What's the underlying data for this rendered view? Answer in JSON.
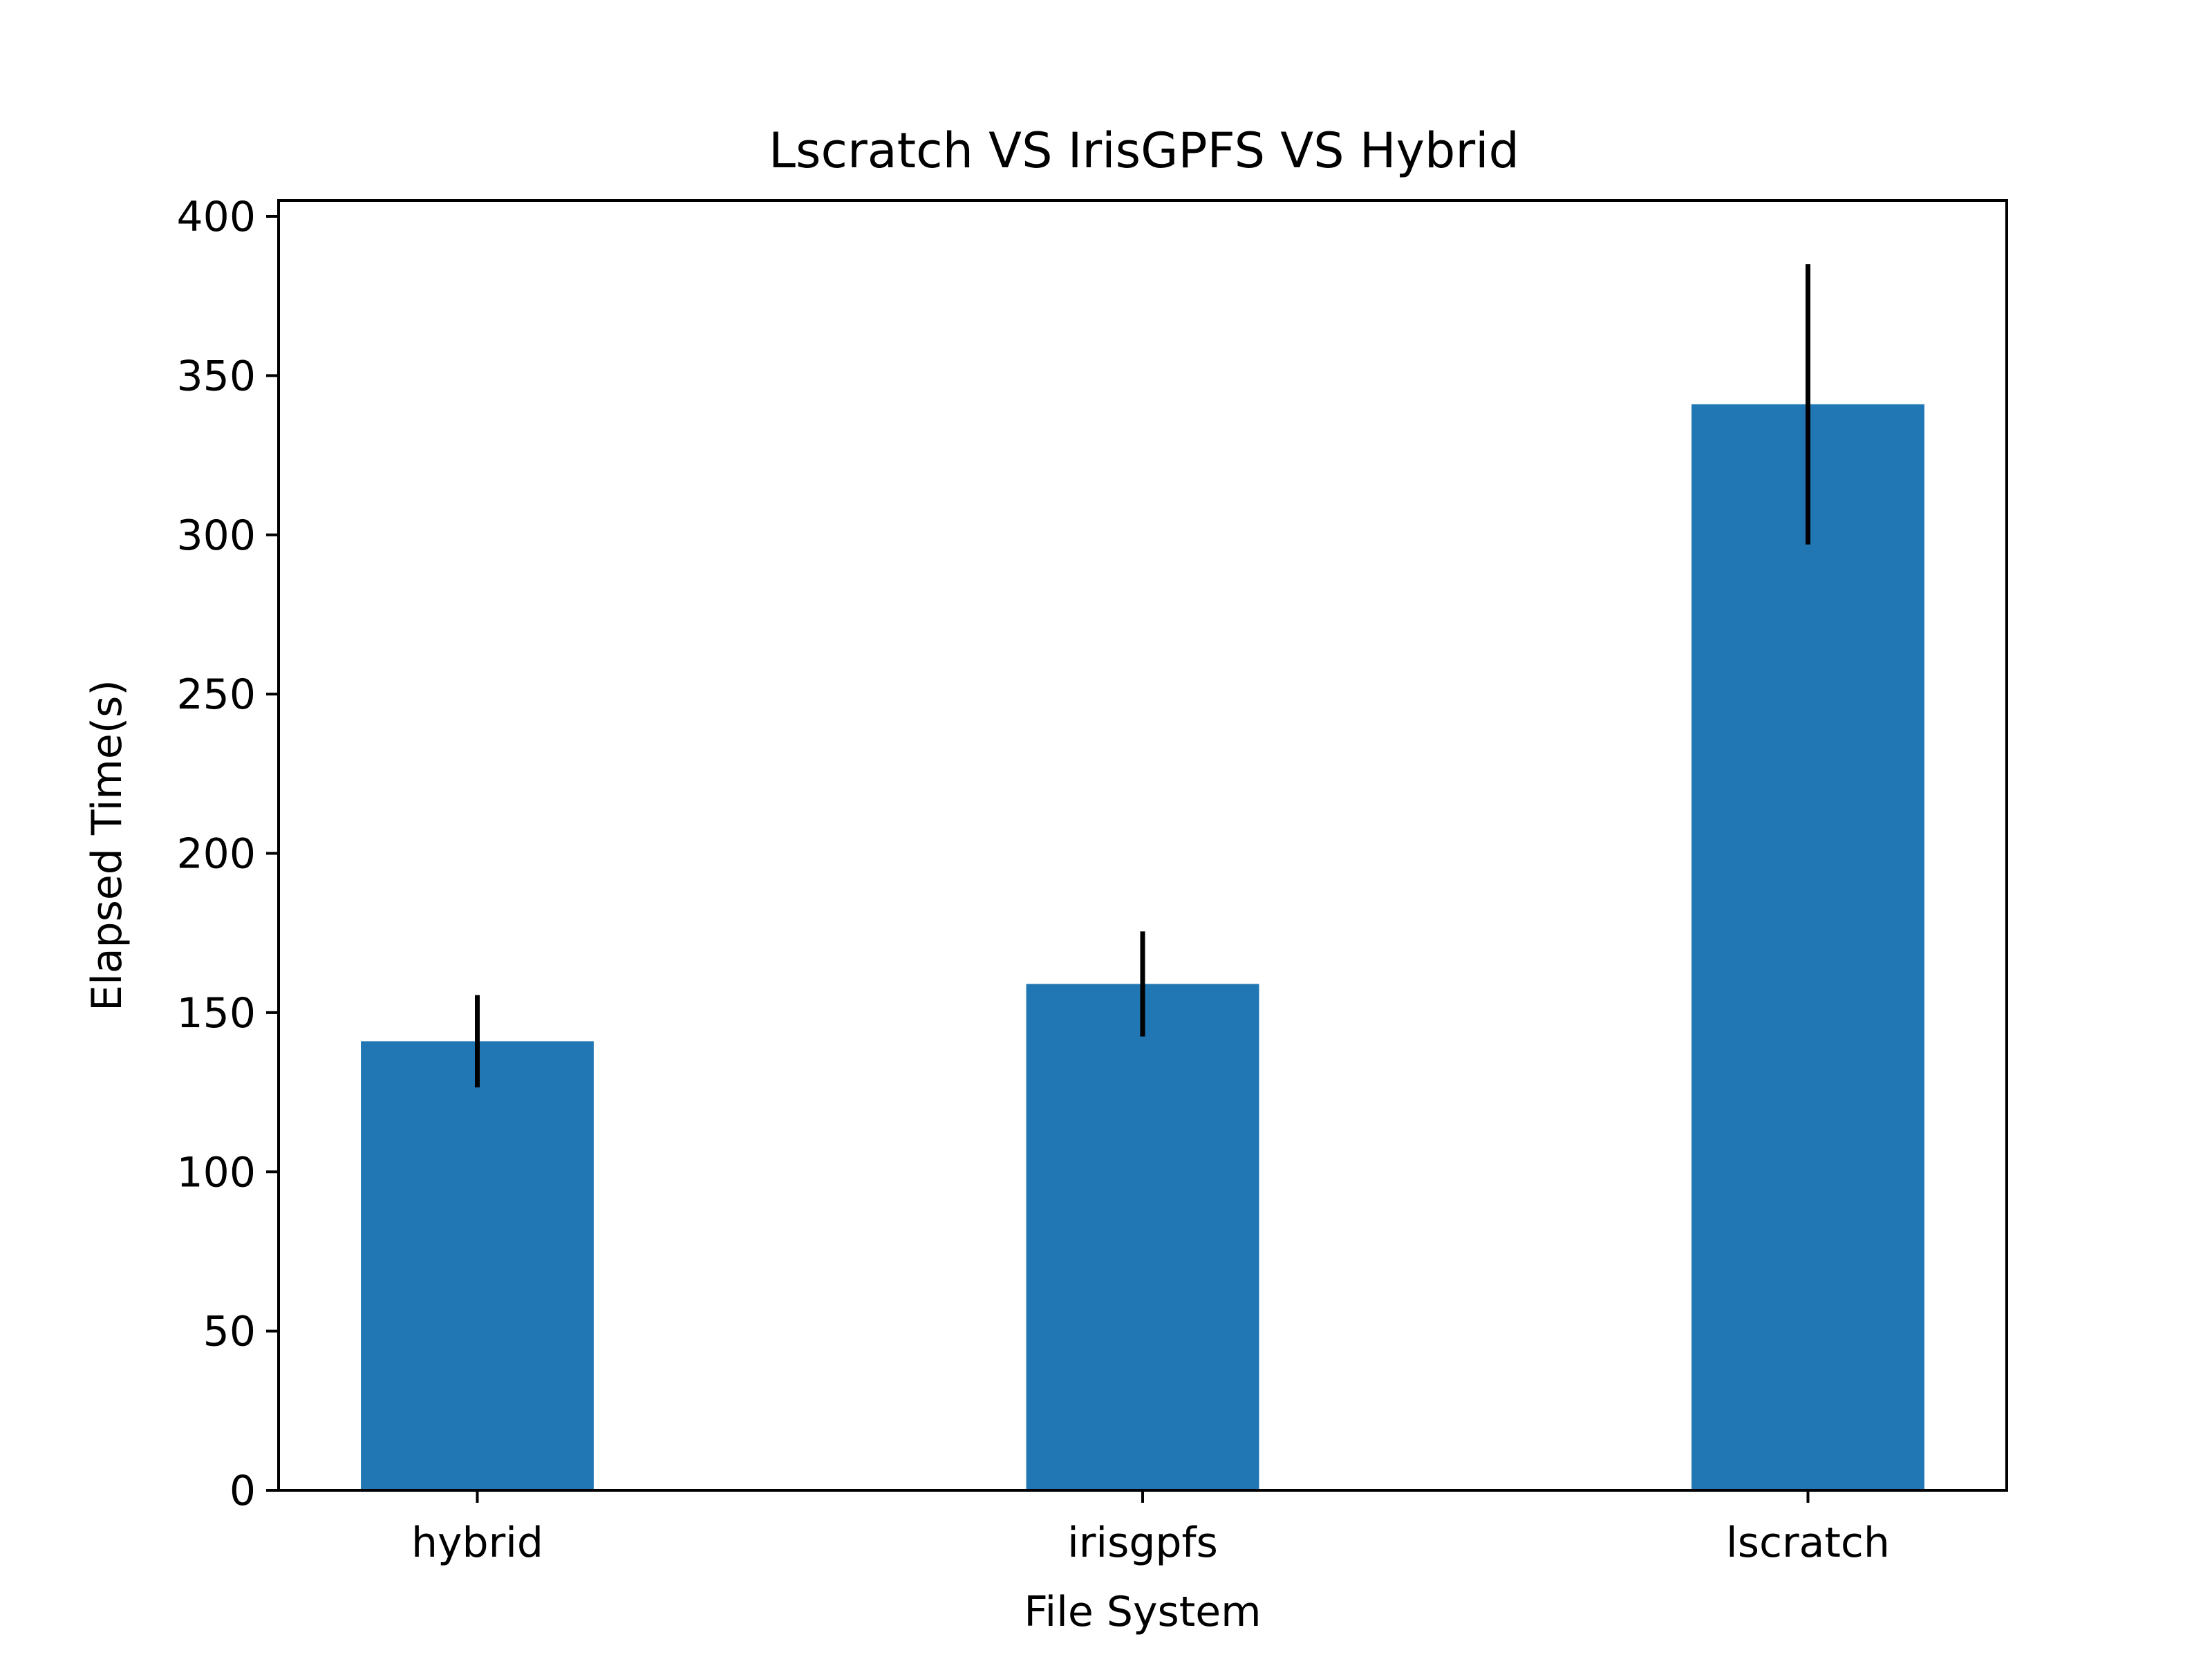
{
  "chart_data": {
    "type": "bar",
    "title": "Lscratch VS IrisGPFS VS Hybrid",
    "xlabel": "File System",
    "ylabel": "Elapsed Time(s)",
    "categories": [
      "hybrid",
      "irisgpfs",
      "lscratch"
    ],
    "values": [
      141,
      159,
      341
    ],
    "errors": [
      14.5,
      16.5,
      44
    ],
    "ylim": [
      0,
      405
    ],
    "yticks": [
      0,
      50,
      100,
      150,
      200,
      250,
      300,
      350,
      400
    ],
    "grid": false,
    "bar_color": "#2077b4",
    "error_color": "#000000"
  }
}
